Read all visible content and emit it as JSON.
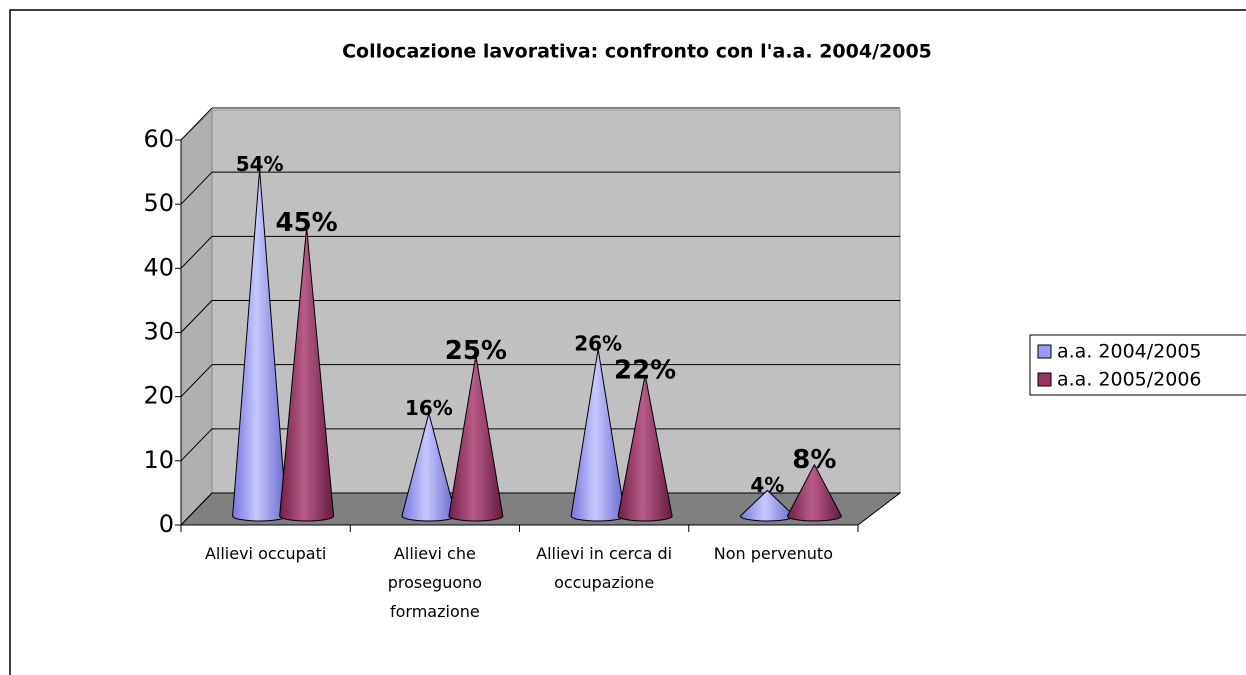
{
  "chart_data": {
    "type": "cone",
    "title": "Collocazione lavorativa: confronto con l'a.a. 2004/2005",
    "categories": [
      "Allievi occupati",
      "Allievi che proseguono formazione",
      "Allievi in cerca di occupazione",
      "Non pervenuto"
    ],
    "series": [
      {
        "name": "a.a. 2004/2005",
        "color": "#9999ff",
        "values": [
          54,
          16,
          26,
          4
        ],
        "value_labels": [
          "54%",
          "16%",
          "26%",
          "4%"
        ]
      },
      {
        "name": "a.a. 2005/2006",
        "color": "#993366",
        "values": [
          45,
          25,
          22,
          8
        ],
        "value_labels": [
          "45%",
          "25%",
          "22%",
          "8%"
        ]
      }
    ],
    "ylim": [
      0,
      60
    ],
    "yticks": [
      0,
      10,
      20,
      30,
      40,
      50,
      60
    ],
    "grid": true,
    "legend": "right"
  }
}
